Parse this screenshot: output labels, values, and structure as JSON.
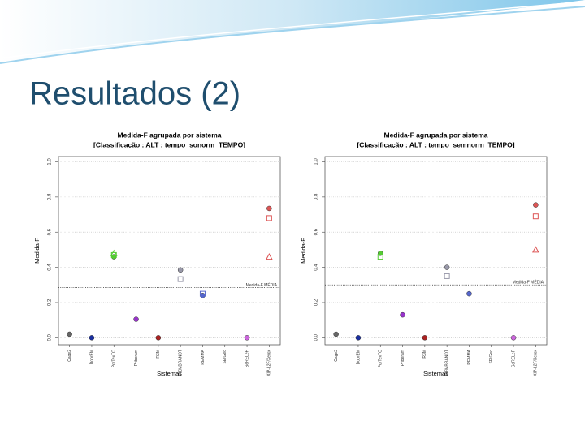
{
  "slide": {
    "title": "Resultados (2)"
  },
  "chart_data": [
    {
      "type": "scatter",
      "title": "Medida-F agrupada por sistema",
      "subtitle": "[Classificação : ALT : tempo_sonorm_TEMPO]",
      "x_label": "Sistemas",
      "y_label": "Medida-F",
      "categories": [
        "Cage2",
        "DobrEM",
        "PorTexTO",
        "Priberam",
        "R3M",
        "REMBRANDT",
        "REMMA",
        "SEIGeo",
        "SeRELeP",
        "XIP-L2F/Xerox"
      ],
      "colors": [
        "#666666",
        "#1a2fa0",
        "#55cc33",
        "#9933cc",
        "#aa2222",
        "#9999aa",
        "#5566cc",
        "#888888",
        "#cc66dd",
        "#dd5555"
      ],
      "series": [
        {
          "marker": "circle",
          "values": [
            0.02,
            0,
            0.46,
            0.105,
            0,
            0.385,
            0.24,
            null,
            0,
            0.735
          ]
        },
        {
          "marker": "square",
          "values": [
            null,
            null,
            0.47,
            null,
            null,
            0.333,
            0.25,
            null,
            null,
            0.68
          ]
        },
        {
          "marker": "triangle",
          "values": [
            null,
            null,
            0.48,
            null,
            null,
            null,
            null,
            null,
            null,
            0.46
          ]
        }
      ],
      "reference": {
        "value": 0.285,
        "label": "Medida-F MÉDIA"
      },
      "ylim": [
        -0.04,
        1.03
      ],
      "yticks": [
        {
          "value": 0,
          "label": "0.0"
        },
        {
          "value": 0.2,
          "label": "0.2"
        },
        {
          "value": 0.4,
          "label": "0.4"
        },
        {
          "value": 0.6,
          "label": "0.6"
        },
        {
          "value": 0.8,
          "label": "0.8"
        },
        {
          "value": 1,
          "label": "1.0"
        }
      ],
      "grid": true
    },
    {
      "type": "scatter",
      "title": "Medida-F agrupada por sistema",
      "subtitle": "[Classificação : ALT : tempo_semnorm_TEMPO]",
      "x_label": "Sistemas",
      "y_label": "Medida-F",
      "categories": [
        "Cage2",
        "DobrEM",
        "PorTexTO",
        "Priberam",
        "R3M",
        "REMBRANDT",
        "REMMA",
        "SEIGeo",
        "SeRELeP",
        "XIP-L2F/Xerox"
      ],
      "colors": [
        "#666666",
        "#1a2fa0",
        "#55cc33",
        "#9933cc",
        "#aa2222",
        "#9999aa",
        "#5566cc",
        "#888888",
        "#cc66dd",
        "#dd5555"
      ],
      "series": [
        {
          "marker": "circle",
          "values": [
            0.02,
            0,
            0.48,
            0.13,
            0,
            0.4,
            0.25,
            null,
            0,
            0.755
          ]
        },
        {
          "marker": "square",
          "values": [
            null,
            null,
            0.46,
            null,
            null,
            0.35,
            null,
            null,
            null,
            0.69
          ]
        },
        {
          "marker": "triangle",
          "values": [
            null,
            null,
            null,
            null,
            null,
            null,
            null,
            null,
            null,
            0.5
          ]
        }
      ],
      "reference": {
        "value": 0.3,
        "label": "Medida-F MÉDIA"
      },
      "ylim": [
        -0.04,
        1.03
      ],
      "yticks": [
        {
          "value": 0,
          "label": "0.0"
        },
        {
          "value": 0.2,
          "label": "0.2"
        },
        {
          "value": 0.4,
          "label": "0.4"
        },
        {
          "value": 0.6,
          "label": "0.6"
        },
        {
          "value": 0.8,
          "label": "0.8"
        },
        {
          "value": 1,
          "label": "1.0"
        }
      ],
      "grid": true
    }
  ]
}
